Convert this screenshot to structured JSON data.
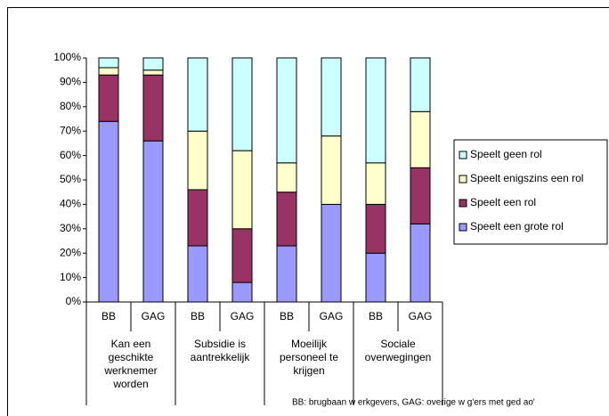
{
  "chart_data": {
    "type": "stacked_bar",
    "groups": [
      {
        "label": "Kan een geschikte werknemer worden",
        "categories": [
          "BB",
          "GAG"
        ]
      },
      {
        "label": "Subsidie is aantrekkelijk",
        "categories": [
          "BB",
          "GAG"
        ]
      },
      {
        "label": "Moeilijk personeel te krijgen",
        "categories": [
          "BB",
          "GAG"
        ]
      },
      {
        "label": "Sociale overwegingen",
        "categories": [
          "BB",
          "GAG"
        ]
      }
    ],
    "series": [
      {
        "name": "Speelt een grote rol",
        "color": "#9999ff",
        "values": [
          74,
          66,
          23,
          8,
          23,
          40,
          20,
          32
        ]
      },
      {
        "name": "Speelt een rol",
        "color": "#993366",
        "values": [
          19,
          27,
          23,
          22,
          22,
          0,
          20,
          23
        ]
      },
      {
        "name": "Speelt enigszins een rol",
        "color": "#ffffcc",
        "values": [
          3,
          2,
          24,
          32,
          12,
          28,
          17,
          23
        ]
      },
      {
        "name": "Speelt geen rol",
        "color": "#ccffff",
        "values": [
          4,
          5,
          30,
          38,
          43,
          32,
          43,
          22
        ]
      }
    ],
    "ylim": [
      0,
      100
    ],
    "yticks": [
      {
        "value": 0,
        "label": "0%"
      },
      {
        "value": 10,
        "label": "10%"
      },
      {
        "value": 20,
        "label": "20%"
      },
      {
        "value": 30,
        "label": "30%"
      },
      {
        "value": 40,
        "label": "40%"
      },
      {
        "value": 50,
        "label": "50%"
      },
      {
        "value": 60,
        "label": "60%"
      },
      {
        "value": 70,
        "label": "70%"
      },
      {
        "value": 80,
        "label": "80%"
      },
      {
        "value": 90,
        "label": "90%"
      },
      {
        "value": 100,
        "label": "100%"
      }
    ],
    "legend": "right",
    "note": "BB: brugbaan w erkgevers, GAG: overige w g'ers met ged ao'"
  }
}
